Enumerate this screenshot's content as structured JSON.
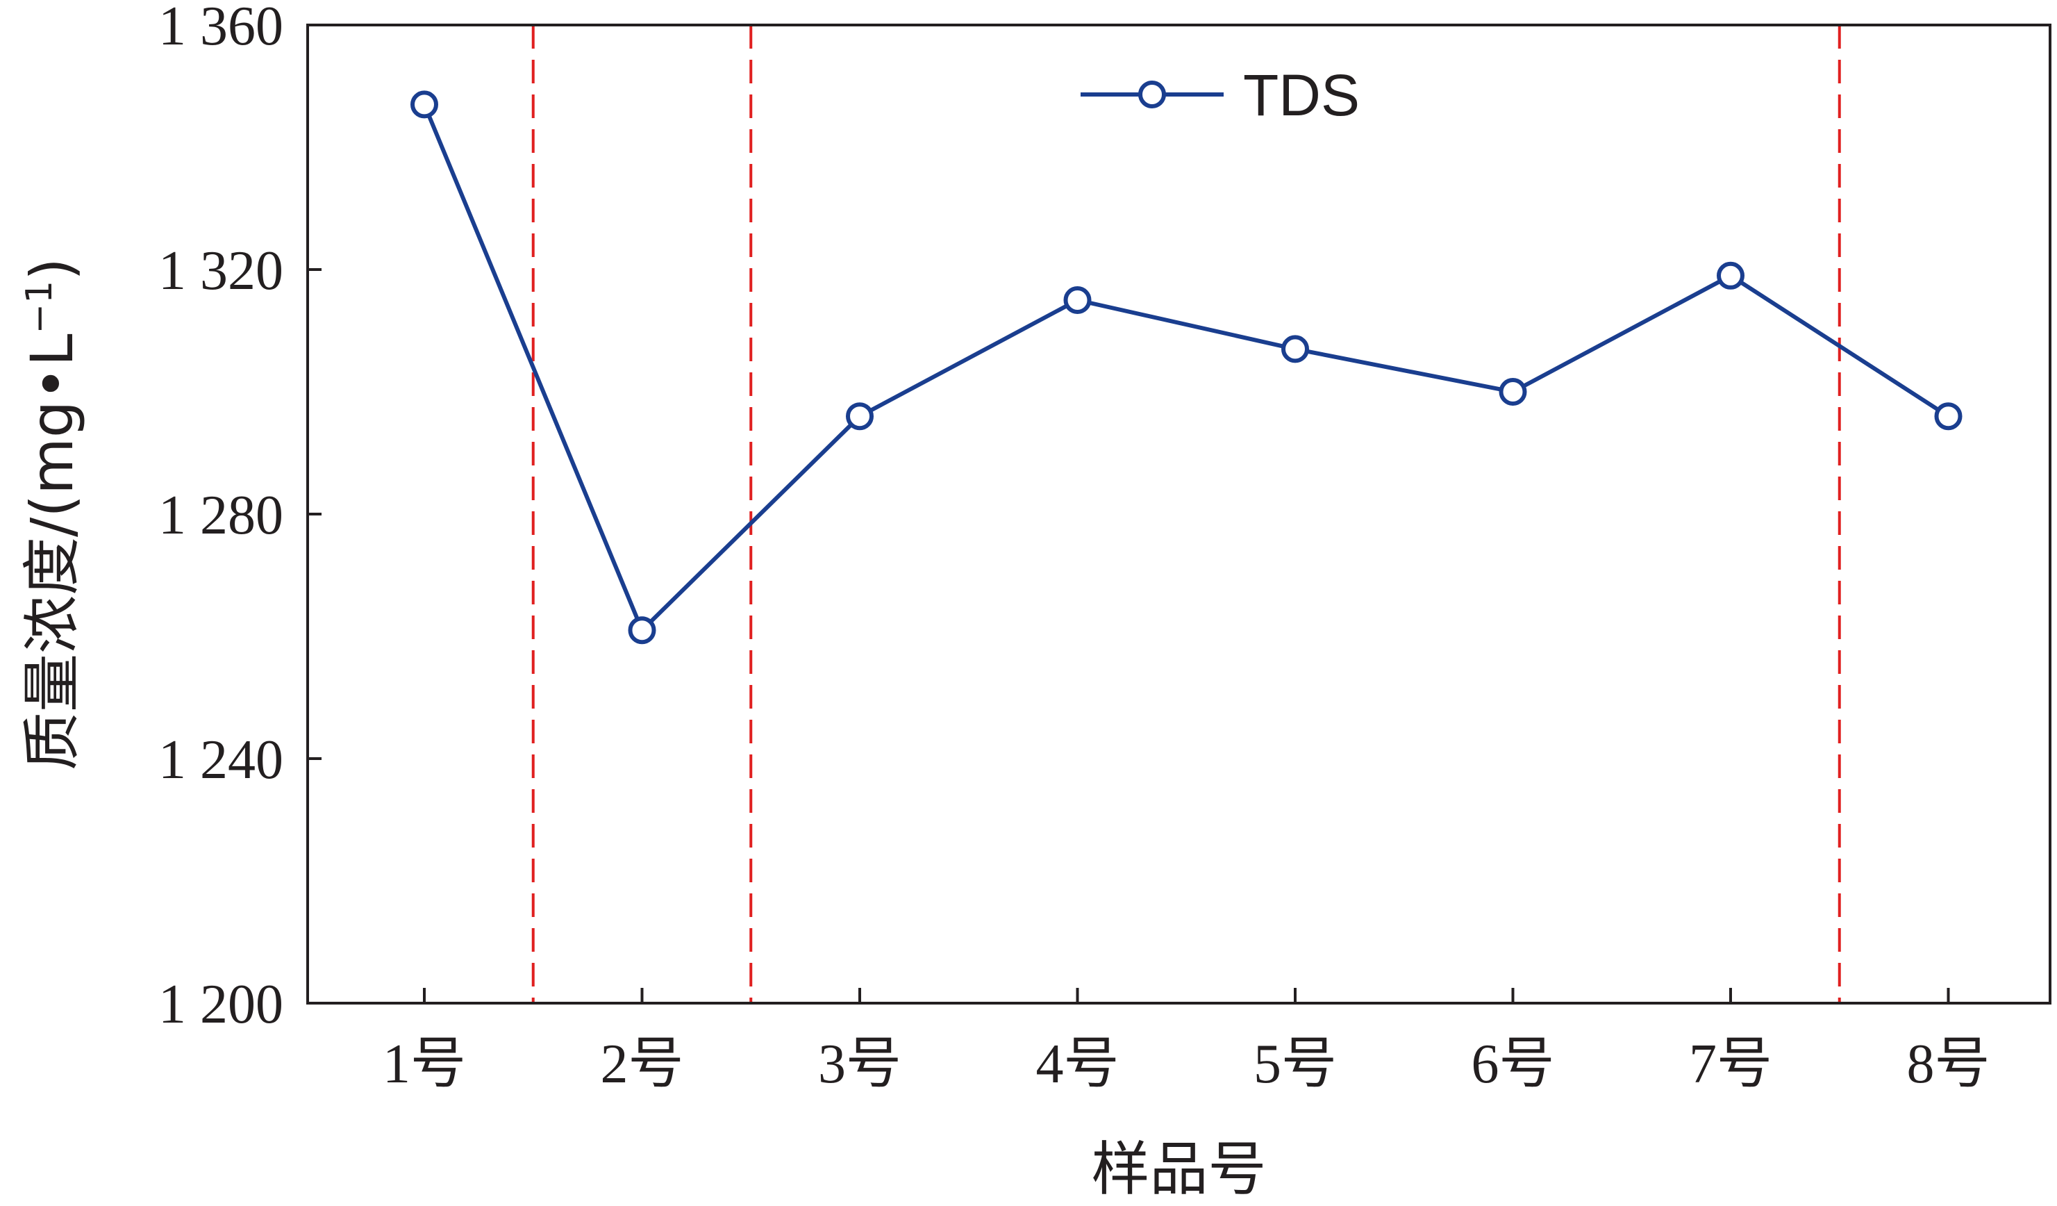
{
  "chart_data": {
    "type": "line",
    "x": [
      "1号",
      "2号",
      "3号",
      "4号",
      "5号",
      "6号",
      "7号",
      "8号"
    ],
    "series": [
      {
        "name": "TDS",
        "values": [
          1347,
          1261,
          1296,
          1315,
          1307,
          1300,
          1319,
          1296
        ]
      }
    ],
    "xlabel": "样品号",
    "ylabel": "质量浓度/(mg•L",
    "ylabel_sup": "−1",
    "ylabel_close": ")",
    "ylim": [
      1200,
      1360
    ],
    "yticks": [
      "1 200",
      "1 240",
      "1 280",
      "1 320",
      "1 360"
    ],
    "ytick_values": [
      1200,
      1240,
      1280,
      1320,
      1360
    ],
    "grid": false,
    "legend": "top-center",
    "dividers_after_index": [
      0,
      1,
      6
    ],
    "colors": {
      "series": "#1a3e8f",
      "divider": "#e02020",
      "axis": "#231f20",
      "marker_fill": "#ffffff"
    }
  }
}
